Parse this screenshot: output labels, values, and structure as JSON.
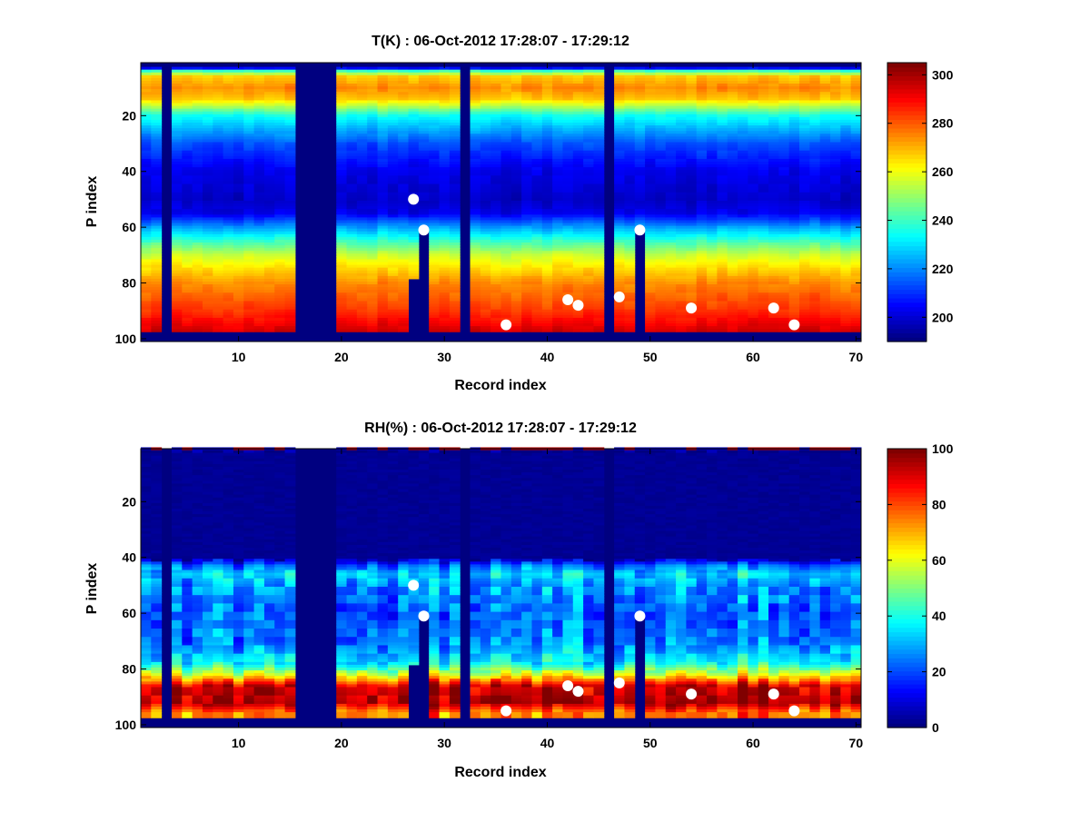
{
  "chart_data": [
    {
      "type": "heatmap",
      "title": "T(K) : 06-Oct-2012 17:28:07 - 17:29:12",
      "xlabel": "Record index",
      "ylabel": "P index",
      "xlim": [
        0.5,
        70.5
      ],
      "ylim": [
        1,
        101
      ],
      "y_reversed": true,
      "xticks": [
        10,
        20,
        30,
        40,
        50,
        60,
        70
      ],
      "yticks": [
        20,
        40,
        60,
        80,
        100
      ],
      "clim": [
        190,
        305
      ],
      "colormap": "jet",
      "colorbar_ticks": [
        200,
        220,
        240,
        260,
        280,
        300
      ],
      "profile_levels": [
        1,
        3,
        4,
        6,
        10,
        14,
        20,
        30,
        40,
        50,
        55,
        60,
        65,
        70,
        75,
        80,
        90,
        97
      ],
      "profile_values": [
        190,
        205,
        240,
        268,
        275,
        268,
        235,
        213,
        202,
        198,
        202,
        222,
        240,
        256,
        266,
        275,
        285,
        295
      ],
      "valid_level_range": [
        3,
        97
      ],
      "missing_records": [
        3,
        16,
        17,
        18,
        19,
        32,
        46
      ],
      "partial_records": [
        {
          "record": 27,
          "valid_until": 78
        },
        {
          "record": 28,
          "valid_until": 61
        },
        {
          "record": 49,
          "valid_until": 61
        }
      ],
      "markers": [
        [
          27,
          50
        ],
        [
          28,
          61
        ],
        [
          36,
          95
        ],
        [
          42,
          86
        ],
        [
          43,
          88
        ],
        [
          47,
          85
        ],
        [
          49,
          61
        ],
        [
          54,
          89
        ],
        [
          62,
          89
        ],
        [
          64,
          95
        ]
      ]
    },
    {
      "type": "heatmap",
      "title": "RH(%) : 06-Oct-2012 17:28:07 - 17:29:12",
      "xlabel": "Record index",
      "ylabel": "P index",
      "xlim": [
        0.5,
        70.5
      ],
      "ylim": [
        1,
        101
      ],
      "y_reversed": true,
      "xticks": [
        10,
        20,
        30,
        40,
        50,
        60,
        70
      ],
      "yticks": [
        20,
        40,
        60,
        80,
        100
      ],
      "clim": [
        0,
        100
      ],
      "colormap": "jet",
      "colorbar_ticks": [
        0,
        20,
        40,
        60,
        80,
        100
      ],
      "profile_levels": [
        1,
        2,
        40,
        43,
        46,
        50,
        60,
        70,
        78,
        82,
        86,
        92,
        96
      ],
      "profile_values": [
        90,
        0,
        2,
        25,
        35,
        28,
        22,
        25,
        38,
        60,
        92,
        98,
        75
      ],
      "valid_level_range": [
        1,
        97
      ],
      "missing_records": [
        3,
        16,
        17,
        18,
        19,
        32,
        46
      ],
      "partial_records": [
        {
          "record": 27,
          "valid_until": 78
        },
        {
          "record": 28,
          "valid_until": 61
        },
        {
          "record": 49,
          "valid_until": 61
        }
      ],
      "markers": [
        [
          27,
          50
        ],
        [
          28,
          61
        ],
        [
          36,
          95
        ],
        [
          42,
          86
        ],
        [
          43,
          88
        ],
        [
          47,
          85
        ],
        [
          49,
          61
        ],
        [
          54,
          89
        ],
        [
          62,
          89
        ],
        [
          64,
          95
        ]
      ]
    }
  ]
}
